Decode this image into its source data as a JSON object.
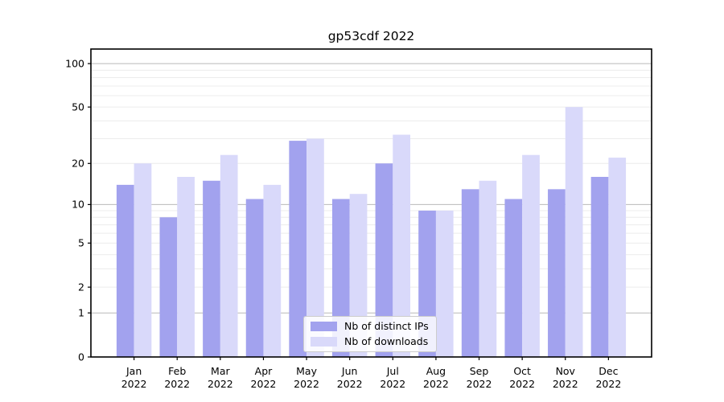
{
  "figure": {
    "title": "gp53cdf 2022"
  },
  "chart_data": {
    "type": "bar",
    "title": "gp53cdf 2022",
    "categories": [
      "Jan",
      "Feb",
      "Mar",
      "Apr",
      "May",
      "Jun",
      "Jul",
      "Aug",
      "Sep",
      "Oct",
      "Nov",
      "Dec"
    ],
    "category_year": "2022",
    "series": [
      {
        "name": "Nb of distinct IPs",
        "color": "#a2a2ee",
        "values": [
          14,
          8,
          15,
          11,
          29,
          11,
          20,
          9,
          13,
          11,
          13,
          16
        ]
      },
      {
        "name": "Nb of downloads",
        "color": "#d9d9fa",
        "values": [
          20,
          16,
          23,
          14,
          30,
          12,
          32,
          9,
          15,
          23,
          50,
          22
        ]
      }
    ],
    "yscale": "log10(1+value)",
    "ylim": [
      0,
      126
    ],
    "yticks": [
      0,
      1,
      2,
      5,
      10,
      20,
      50,
      100
    ],
    "ytick_labels": [
      "0",
      "1",
      "2",
      "5",
      "10",
      "20",
      "50",
      "100"
    ],
    "major_grid_values": [
      1,
      10,
      100
    ],
    "minor_grid_values": [
      2,
      3,
      4,
      5,
      6,
      7,
      8,
      9,
      20,
      30,
      40,
      50,
      60,
      70,
      80,
      90
    ],
    "grid": "horizontal",
    "legend_position": "lower center",
    "colors": {
      "major_grid": "#b9b9b9",
      "minor_grid": "#ececec",
      "axis": "#000000",
      "tick": "#000000",
      "background": "#ffffff",
      "legend_border": "#cccccc"
    }
  }
}
